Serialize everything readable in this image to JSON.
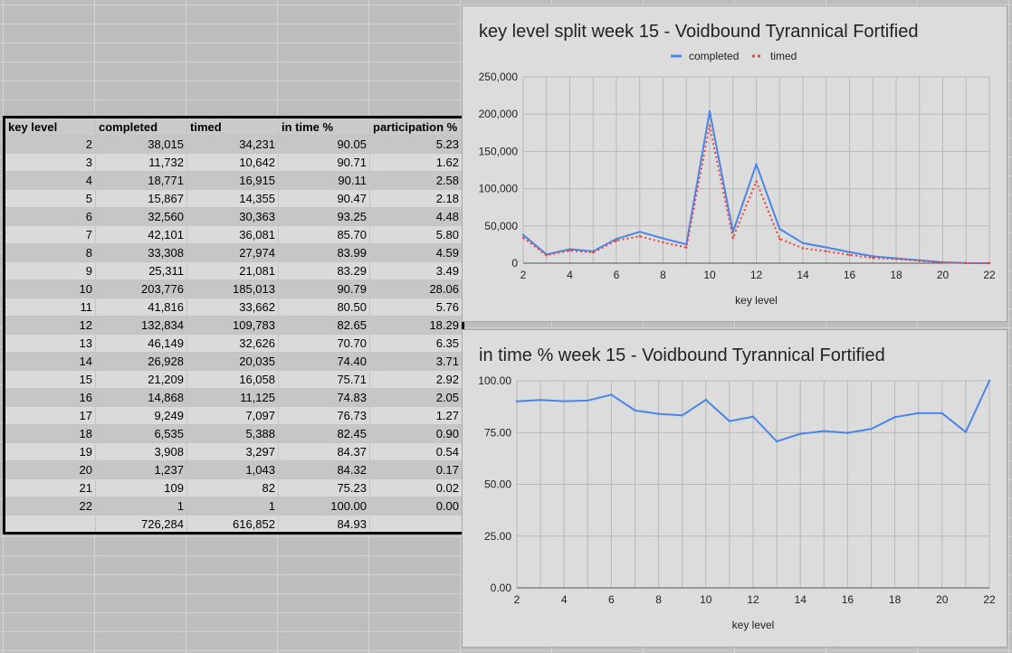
{
  "table": {
    "headers": [
      "key level",
      "completed",
      "timed",
      "in time %",
      "participation %"
    ],
    "rows": [
      [
        "2",
        "38,015",
        "34,231",
        "90.05",
        "5.23"
      ],
      [
        "3",
        "11,732",
        "10,642",
        "90.71",
        "1.62"
      ],
      [
        "4",
        "18,771",
        "16,915",
        "90.11",
        "2.58"
      ],
      [
        "5",
        "15,867",
        "14,355",
        "90.47",
        "2.18"
      ],
      [
        "6",
        "32,560",
        "30,363",
        "93.25",
        "4.48"
      ],
      [
        "7",
        "42,101",
        "36,081",
        "85.70",
        "5.80"
      ],
      [
        "8",
        "33,308",
        "27,974",
        "83.99",
        "4.59"
      ],
      [
        "9",
        "25,311",
        "21,081",
        "83.29",
        "3.49"
      ],
      [
        "10",
        "203,776",
        "185,013",
        "90.79",
        "28.06"
      ],
      [
        "11",
        "41,816",
        "33,662",
        "80.50",
        "5.76"
      ],
      [
        "12",
        "132,834",
        "109,783",
        "82.65",
        "18.29"
      ],
      [
        "13",
        "46,149",
        "32,626",
        "70.70",
        "6.35"
      ],
      [
        "14",
        "26,928",
        "20,035",
        "74.40",
        "3.71"
      ],
      [
        "15",
        "21,209",
        "16,058",
        "75.71",
        "2.92"
      ],
      [
        "16",
        "14,868",
        "11,125",
        "74.83",
        "2.05"
      ],
      [
        "17",
        "9,249",
        "7,097",
        "76.73",
        "1.27"
      ],
      [
        "18",
        "6,535",
        "5,388",
        "82.45",
        "0.90"
      ],
      [
        "19",
        "3,908",
        "3,297",
        "84.37",
        "0.54"
      ],
      [
        "20",
        "1,237",
        "1,043",
        "84.32",
        "0.17"
      ],
      [
        "21",
        "109",
        "82",
        "75.23",
        "0.02"
      ],
      [
        "22",
        "1",
        "1",
        "100.00",
        "0.00"
      ]
    ],
    "totals": [
      "",
      "726,284",
      "616,852",
      "84.93",
      ""
    ]
  },
  "colors": {
    "completed": "#4a86e8",
    "timed": "#e8453c",
    "text": "#222222"
  },
  "chart_data": [
    {
      "type": "line",
      "title": "key level split week 15 - Voidbound Tyrannical Fortified",
      "xlabel": "key level",
      "ylabel": "",
      "x": [
        2,
        3,
        4,
        5,
        6,
        7,
        8,
        9,
        10,
        11,
        12,
        13,
        14,
        15,
        16,
        17,
        18,
        19,
        20,
        21,
        22
      ],
      "xlim": [
        2,
        22
      ],
      "xticks": [
        "2",
        "4",
        "6",
        "8",
        "10",
        "12",
        "14",
        "16",
        "18",
        "20",
        "22"
      ],
      "ylim": [
        0,
        250000
      ],
      "yticks": [
        "0",
        "50,000",
        "100,000",
        "150,000",
        "200,000",
        "250,000"
      ],
      "grid": true,
      "legend": "top-center",
      "series": [
        {
          "name": "completed",
          "style": "solid",
          "values": [
            38015,
            11732,
            18771,
            15867,
            32560,
            42101,
            33308,
            25311,
            203776,
            41816,
            132834,
            46149,
            26928,
            21209,
            14868,
            9249,
            6535,
            3908,
            1237,
            109,
            1
          ]
        },
        {
          "name": "timed",
          "style": "dotted",
          "values": [
            34231,
            10642,
            16915,
            14355,
            30363,
            36081,
            27974,
            21081,
            185013,
            33662,
            109783,
            32626,
            20035,
            16058,
            11125,
            7097,
            5388,
            3297,
            1043,
            82,
            1
          ]
        }
      ]
    },
    {
      "type": "line",
      "title": "in time % week 15 - Voidbound Tyrannical Fortified",
      "xlabel": "key level",
      "ylabel": "",
      "x": [
        2,
        3,
        4,
        5,
        6,
        7,
        8,
        9,
        10,
        11,
        12,
        13,
        14,
        15,
        16,
        17,
        18,
        19,
        20,
        21,
        22
      ],
      "xlim": [
        2,
        22
      ],
      "xticks": [
        "2",
        "4",
        "6",
        "8",
        "10",
        "12",
        "14",
        "16",
        "18",
        "20",
        "22"
      ],
      "ylim": [
        0,
        100
      ],
      "yticks": [
        "0.00",
        "25.00",
        "50.00",
        "75.00",
        "100.00"
      ],
      "grid": true,
      "legend": "none",
      "series": [
        {
          "style": "solid",
          "values": [
            90.05,
            90.71,
            90.11,
            90.47,
            93.25,
            85.7,
            83.99,
            83.29,
            90.79,
            80.5,
            82.65,
            70.7,
            74.4,
            75.71,
            74.83,
            76.73,
            82.45,
            84.37,
            84.32,
            75.23,
            100.0
          ]
        }
      ]
    }
  ]
}
